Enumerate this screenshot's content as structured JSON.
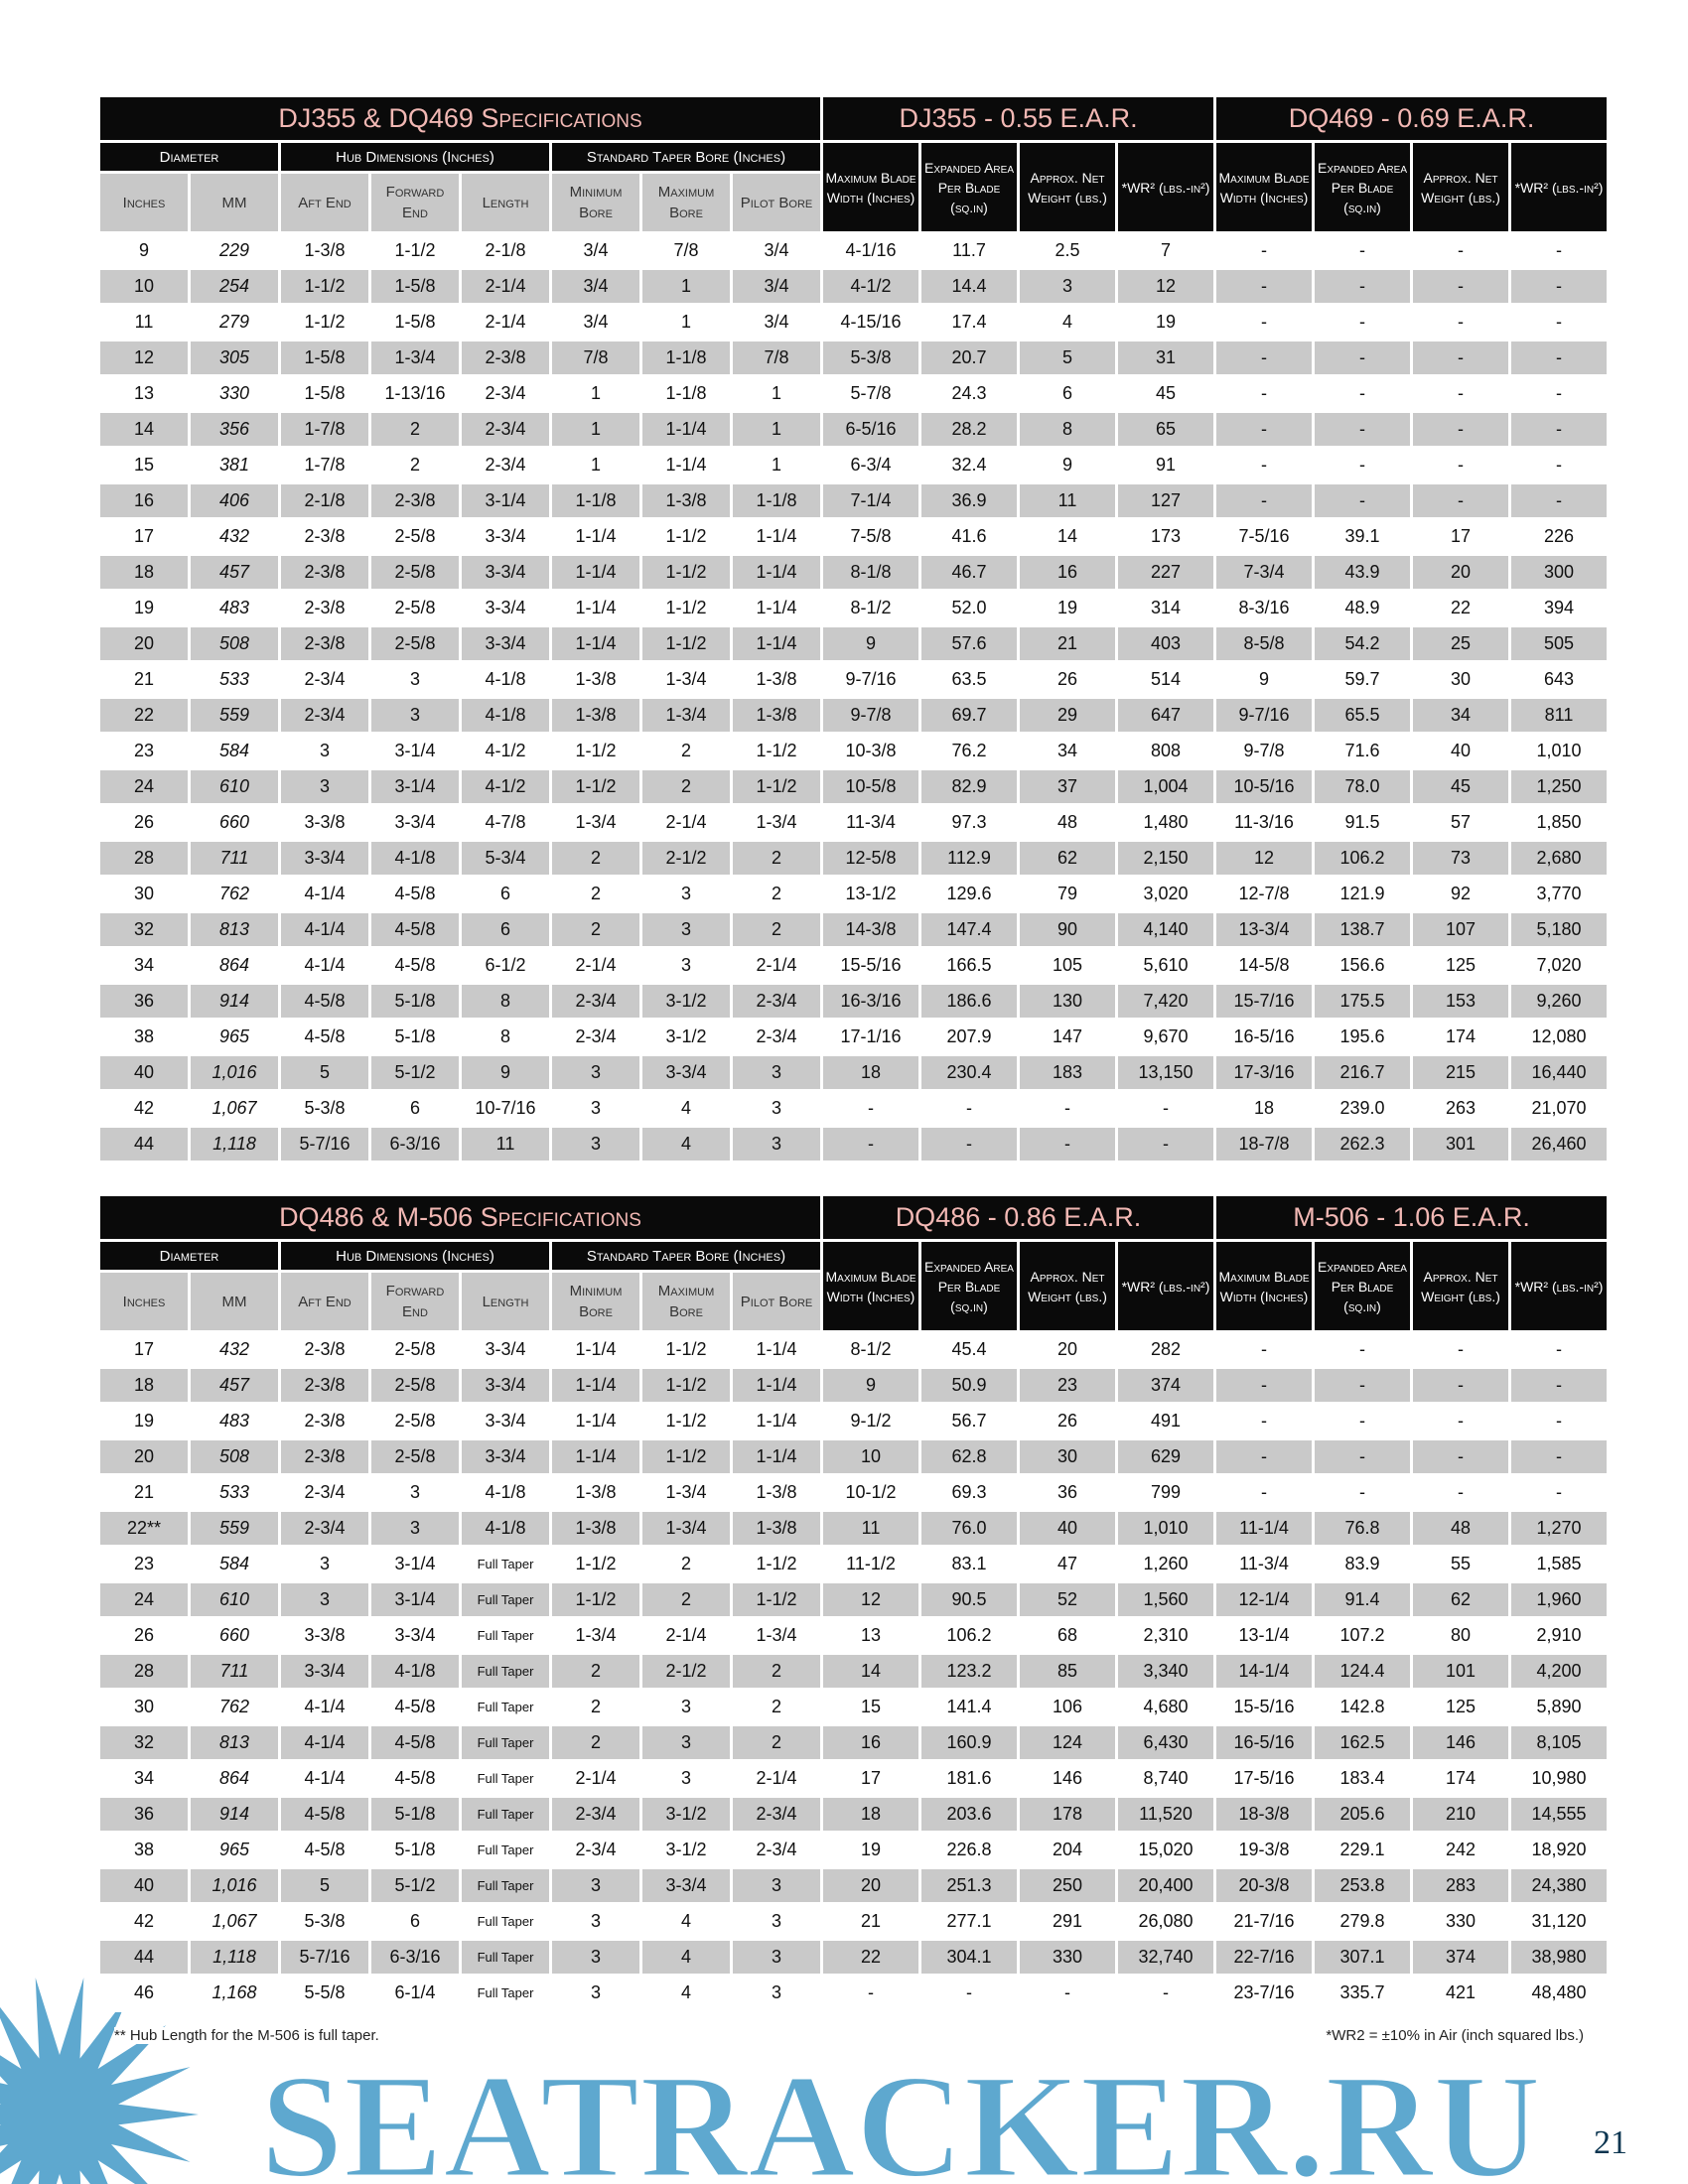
{
  "table1": {
    "title": "DJ355 & DQ469 Specifications",
    "model_a": "DJ355 - 0.55 E.A.R.",
    "model_b": "DQ469 - 0.69 E.A.R.",
    "mm_italic": true,
    "rows": [
      [
        "9",
        "229",
        "1-3/8",
        "1-1/2",
        "2-1/8",
        "3/4",
        "7/8",
        "3/4",
        "4-1/16",
        "11.7",
        "2.5",
        "7",
        "-",
        "-",
        "-",
        "-"
      ],
      [
        "10",
        "254",
        "1-1/2",
        "1-5/8",
        "2-1/4",
        "3/4",
        "1",
        "3/4",
        "4-1/2",
        "14.4",
        "3",
        "12",
        "-",
        "-",
        "-",
        "-"
      ],
      [
        "11",
        "279",
        "1-1/2",
        "1-5/8",
        "2-1/4",
        "3/4",
        "1",
        "3/4",
        "4-15/16",
        "17.4",
        "4",
        "19",
        "-",
        "-",
        "-",
        "-"
      ],
      [
        "12",
        "305",
        "1-5/8",
        "1-3/4",
        "2-3/8",
        "7/8",
        "1-1/8",
        "7/8",
        "5-3/8",
        "20.7",
        "5",
        "31",
        "-",
        "-",
        "-",
        "-"
      ],
      [
        "13",
        "330",
        "1-5/8",
        "1-13/16",
        "2-3/4",
        "1",
        "1-1/8",
        "1",
        "5-7/8",
        "24.3",
        "6",
        "45",
        "-",
        "-",
        "-",
        "-"
      ],
      [
        "14",
        "356",
        "1-7/8",
        "2",
        "2-3/4",
        "1",
        "1-1/4",
        "1",
        "6-5/16",
        "28.2",
        "8",
        "65",
        "-",
        "-",
        "-",
        "-"
      ],
      [
        "15",
        "381",
        "1-7/8",
        "2",
        "2-3/4",
        "1",
        "1-1/4",
        "1",
        "6-3/4",
        "32.4",
        "9",
        "91",
        "-",
        "-",
        "-",
        "-"
      ],
      [
        "16",
        "406",
        "2-1/8",
        "2-3/8",
        "3-1/4",
        "1-1/8",
        "1-3/8",
        "1-1/8",
        "7-1/4",
        "36.9",
        "11",
        "127",
        "-",
        "-",
        "-",
        "-"
      ],
      [
        "17",
        "432",
        "2-3/8",
        "2-5/8",
        "3-3/4",
        "1-1/4",
        "1-1/2",
        "1-1/4",
        "7-5/8",
        "41.6",
        "14",
        "173",
        "7-5/16",
        "39.1",
        "17",
        "226"
      ],
      [
        "18",
        "457",
        "2-3/8",
        "2-5/8",
        "3-3/4",
        "1-1/4",
        "1-1/2",
        "1-1/4",
        "8-1/8",
        "46.7",
        "16",
        "227",
        "7-3/4",
        "43.9",
        "20",
        "300"
      ],
      [
        "19",
        "483",
        "2-3/8",
        "2-5/8",
        "3-3/4",
        "1-1/4",
        "1-1/2",
        "1-1/4",
        "8-1/2",
        "52.0",
        "19",
        "314",
        "8-3/16",
        "48.9",
        "22",
        "394"
      ],
      [
        "20",
        "508",
        "2-3/8",
        "2-5/8",
        "3-3/4",
        "1-1/4",
        "1-1/2",
        "1-1/4",
        "9",
        "57.6",
        "21",
        "403",
        "8-5/8",
        "54.2",
        "25",
        "505"
      ],
      [
        "21",
        "533",
        "2-3/4",
        "3",
        "4-1/8",
        "1-3/8",
        "1-3/4",
        "1-3/8",
        "9-7/16",
        "63.5",
        "26",
        "514",
        "9",
        "59.7",
        "30",
        "643"
      ],
      [
        "22",
        "559",
        "2-3/4",
        "3",
        "4-1/8",
        "1-3/8",
        "1-3/4",
        "1-3/8",
        "9-7/8",
        "69.7",
        "29",
        "647",
        "9-7/16",
        "65.5",
        "34",
        "811"
      ],
      [
        "23",
        "584",
        "3",
        "3-1/4",
        "4-1/2",
        "1-1/2",
        "2",
        "1-1/2",
        "10-3/8",
        "76.2",
        "34",
        "808",
        "9-7/8",
        "71.6",
        "40",
        "1,010"
      ],
      [
        "24",
        "610",
        "3",
        "3-1/4",
        "4-1/2",
        "1-1/2",
        "2",
        "1-1/2",
        "10-5/8",
        "82.9",
        "37",
        "1,004",
        "10-5/16",
        "78.0",
        "45",
        "1,250"
      ],
      [
        "26",
        "660",
        "3-3/8",
        "3-3/4",
        "4-7/8",
        "1-3/4",
        "2-1/4",
        "1-3/4",
        "11-3/4",
        "97.3",
        "48",
        "1,480",
        "11-3/16",
        "91.5",
        "57",
        "1,850"
      ],
      [
        "28",
        "711",
        "3-3/4",
        "4-1/8",
        "5-3/4",
        "2",
        "2-1/2",
        "2",
        "12-5/8",
        "112.9",
        "62",
        "2,150",
        "12",
        "106.2",
        "73",
        "2,680"
      ],
      [
        "30",
        "762",
        "4-1/4",
        "4-5/8",
        "6",
        "2",
        "3",
        "2",
        "13-1/2",
        "129.6",
        "79",
        "3,020",
        "12-7/8",
        "121.9",
        "92",
        "3,770"
      ],
      [
        "32",
        "813",
        "4-1/4",
        "4-5/8",
        "6",
        "2",
        "3",
        "2",
        "14-3/8",
        "147.4",
        "90",
        "4,140",
        "13-3/4",
        "138.7",
        "107",
        "5,180"
      ],
      [
        "34",
        "864",
        "4-1/4",
        "4-5/8",
        "6-1/2",
        "2-1/4",
        "3",
        "2-1/4",
        "15-5/16",
        "166.5",
        "105",
        "5,610",
        "14-5/8",
        "156.6",
        "125",
        "7,020"
      ],
      [
        "36",
        "914",
        "4-5/8",
        "5-1/8",
        "8",
        "2-3/4",
        "3-1/2",
        "2-3/4",
        "16-3/16",
        "186.6",
        "130",
        "7,420",
        "15-7/16",
        "175.5",
        "153",
        "9,260"
      ],
      [
        "38",
        "965",
        "4-5/8",
        "5-1/8",
        "8",
        "2-3/4",
        "3-1/2",
        "2-3/4",
        "17-1/16",
        "207.9",
        "147",
        "9,670",
        "16-5/16",
        "195.6",
        "174",
        "12,080"
      ],
      [
        "40",
        "1,016",
        "5",
        "5-1/2",
        "9",
        "3",
        "3-3/4",
        "3",
        "18",
        "230.4",
        "183",
        "13,150",
        "17-3/16",
        "216.7",
        "215",
        "16,440"
      ],
      [
        "42",
        "1,067",
        "5-3/8",
        "6",
        "10-7/16",
        "3",
        "4",
        "3",
        "-",
        "-",
        "-",
        "-",
        "18",
        "239.0",
        "263",
        "21,070"
      ],
      [
        "44",
        "1,118",
        "5-7/16",
        "6-3/16",
        "11",
        "3",
        "4",
        "3",
        "-",
        "-",
        "-",
        "-",
        "18-7/8",
        "262.3",
        "301",
        "26,460"
      ]
    ]
  },
  "table2": {
    "title": "DQ486 & M-506 Specifications",
    "model_a": "DQ486 - 0.86 E.A.R.",
    "model_b": "M-506 - 1.06 E.A.R.",
    "mm_italic": true,
    "rows": [
      [
        "17",
        "432",
        "2-3/8",
        "2-5/8",
        "3-3/4",
        "1-1/4",
        "1-1/2",
        "1-1/4",
        "8-1/2",
        "45.4",
        "20",
        "282",
        "-",
        "-",
        "-",
        "-"
      ],
      [
        "18",
        "457",
        "2-3/8",
        "2-5/8",
        "3-3/4",
        "1-1/4",
        "1-1/2",
        "1-1/4",
        "9",
        "50.9",
        "23",
        "374",
        "-",
        "-",
        "-",
        "-"
      ],
      [
        "19",
        "483",
        "2-3/8",
        "2-5/8",
        "3-3/4",
        "1-1/4",
        "1-1/2",
        "1-1/4",
        "9-1/2",
        "56.7",
        "26",
        "491",
        "-",
        "-",
        "-",
        "-"
      ],
      [
        "20",
        "508",
        "2-3/8",
        "2-5/8",
        "3-3/4",
        "1-1/4",
        "1-1/2",
        "1-1/4",
        "10",
        "62.8",
        "30",
        "629",
        "-",
        "-",
        "-",
        "-"
      ],
      [
        "21",
        "533",
        "2-3/4",
        "3",
        "4-1/8",
        "1-3/8",
        "1-3/4",
        "1-3/8",
        "10-1/2",
        "69.3",
        "36",
        "799",
        "-",
        "-",
        "-",
        "-"
      ],
      [
        "22**",
        "559",
        "2-3/4",
        "3",
        "4-1/8",
        "1-3/8",
        "1-3/4",
        "1-3/8",
        "11",
        "76.0",
        "40",
        "1,010",
        "11-1/4",
        "76.8",
        "48",
        "1,270"
      ],
      [
        "23",
        "584",
        "3",
        "3-1/4",
        "Full Taper",
        "1-1/2",
        "2",
        "1-1/2",
        "11-1/2",
        "83.1",
        "47",
        "1,260",
        "11-3/4",
        "83.9",
        "55",
        "1,585"
      ],
      [
        "24",
        "610",
        "3",
        "3-1/4",
        "Full Taper",
        "1-1/2",
        "2",
        "1-1/2",
        "12",
        "90.5",
        "52",
        "1,560",
        "12-1/4",
        "91.4",
        "62",
        "1,960"
      ],
      [
        "26",
        "660",
        "3-3/8",
        "3-3/4",
        "Full Taper",
        "1-3/4",
        "2-1/4",
        "1-3/4",
        "13",
        "106.2",
        "68",
        "2,310",
        "13-1/4",
        "107.2",
        "80",
        "2,910"
      ],
      [
        "28",
        "711",
        "3-3/4",
        "4-1/8",
        "Full Taper",
        "2",
        "2-1/2",
        "2",
        "14",
        "123.2",
        "85",
        "3,340",
        "14-1/4",
        "124.4",
        "101",
        "4,200"
      ],
      [
        "30",
        "762",
        "4-1/4",
        "4-5/8",
        "Full Taper",
        "2",
        "3",
        "2",
        "15",
        "141.4",
        "106",
        "4,680",
        "15-5/16",
        "142.8",
        "125",
        "5,890"
      ],
      [
        "32",
        "813",
        "4-1/4",
        "4-5/8",
        "Full Taper",
        "2",
        "3",
        "2",
        "16",
        "160.9",
        "124",
        "6,430",
        "16-5/16",
        "162.5",
        "146",
        "8,105"
      ],
      [
        "34",
        "864",
        "4-1/4",
        "4-5/8",
        "Full Taper",
        "2-1/4",
        "3",
        "2-1/4",
        "17",
        "181.6",
        "146",
        "8,740",
        "17-5/16",
        "183.4",
        "174",
        "10,980"
      ],
      [
        "36",
        "914",
        "4-5/8",
        "5-1/8",
        "Full Taper",
        "2-3/4",
        "3-1/2",
        "2-3/4",
        "18",
        "203.6",
        "178",
        "11,520",
        "18-3/8",
        "205.6",
        "210",
        "14,555"
      ],
      [
        "38",
        "965",
        "4-5/8",
        "5-1/8",
        "Full Taper",
        "2-3/4",
        "3-1/2",
        "2-3/4",
        "19",
        "226.8",
        "204",
        "15,020",
        "19-3/8",
        "229.1",
        "242",
        "18,920"
      ],
      [
        "40",
        "1,016",
        "5",
        "5-1/2",
        "Full Taper",
        "3",
        "3-3/4",
        "3",
        "20",
        "251.3",
        "250",
        "20,400",
        "20-3/8",
        "253.8",
        "283",
        "24,380"
      ],
      [
        "42",
        "1,067",
        "5-3/8",
        "6",
        "Full Taper",
        "3",
        "4",
        "3",
        "21",
        "277.1",
        "291",
        "26,080",
        "21-7/16",
        "279.8",
        "330",
        "31,120"
      ],
      [
        "44",
        "1,118",
        "5-7/16",
        "6-3/16",
        "Full Taper",
        "3",
        "4",
        "3",
        "22",
        "304.1",
        "330",
        "32,740",
        "22-7/16",
        "307.1",
        "374",
        "38,980"
      ],
      [
        "46",
        "1,168",
        "5-5/8",
        "6-1/4",
        "Full Taper",
        "3",
        "4",
        "3",
        "-",
        "-",
        "-",
        "-",
        "23-7/16",
        "335.7",
        "421",
        "48,480"
      ]
    ]
  },
  "headers": {
    "groups": [
      "Diameter",
      "Hub Dimensions (Inches)",
      "Standard Taper Bore (Inches)"
    ],
    "sub": [
      "Inches",
      "MM",
      "Aft End",
      "Forward End",
      "Length",
      "Minimum Bore",
      "Maximum Bore",
      "Pilot Bore"
    ],
    "perf": [
      "Maximum Blade Width (Inches)",
      "Expanded Area Per Blade (sq.in)",
      "Approx. Net Weight (lbs.)",
      "*WR² (lbs.-in²)"
    ]
  },
  "footnotes": {
    "left": "** Hub Length for the M-506 is full taper.",
    "right": "*WR2 = ±10% in Air (inch squared lbs.)"
  },
  "page_number": "21",
  "watermark": {
    "text": "SEATRACKER.RU",
    "color": "#5ea8cf",
    "icon": "starburst-icon"
  },
  "colors": {
    "header_bg": "#0a0a0a",
    "title_text": "#f2b8b4",
    "stripe": "#c9c9c9"
  }
}
